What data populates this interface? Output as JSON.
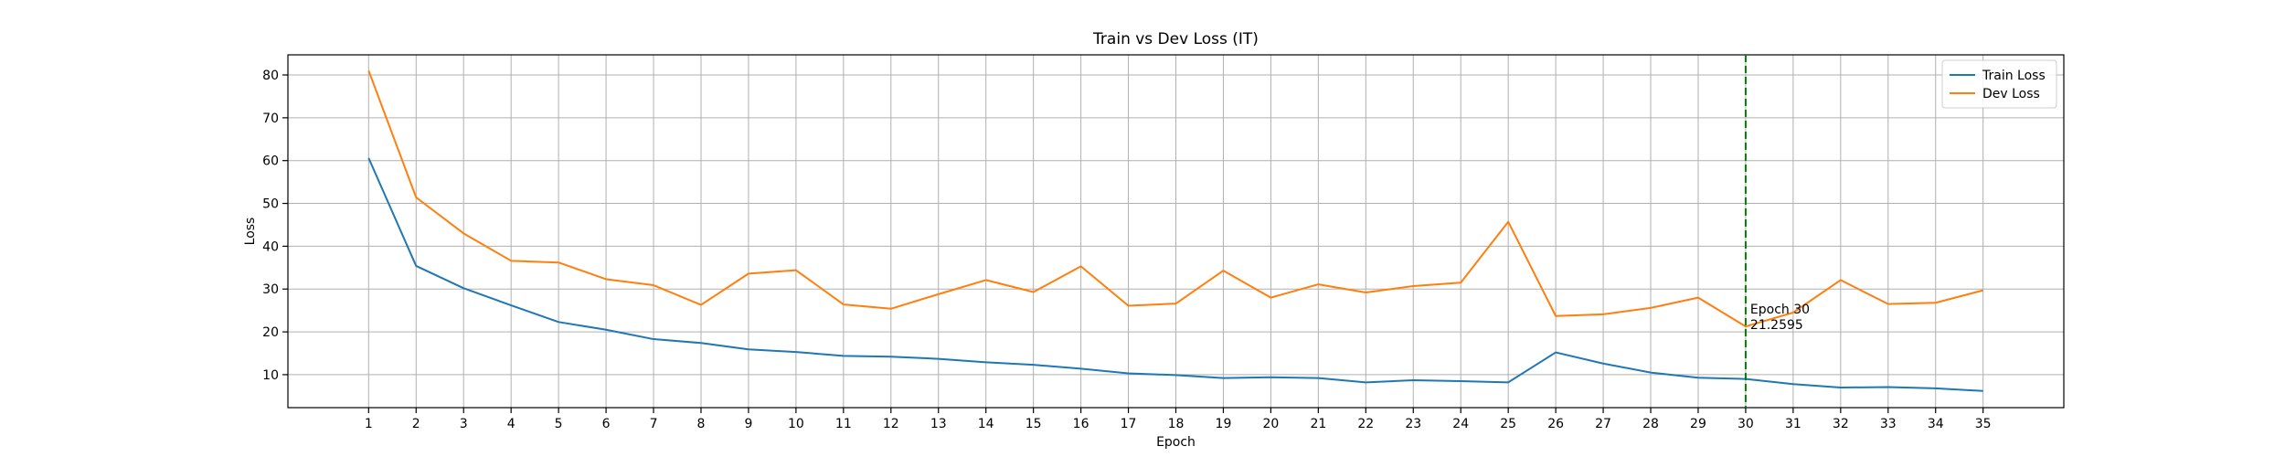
{
  "chart_data": {
    "type": "line",
    "title": "Train vs Dev Loss (IT)",
    "xlabel": "Epoch",
    "ylabel": "Loss",
    "x": [
      1,
      2,
      3,
      4,
      5,
      6,
      7,
      8,
      9,
      10,
      11,
      12,
      13,
      14,
      15,
      16,
      17,
      18,
      19,
      20,
      21,
      22,
      23,
      24,
      25,
      26,
      27,
      28,
      29,
      30,
      31,
      32,
      33,
      34,
      35
    ],
    "xlim": [
      -0.7,
      36.7
    ],
    "ylim": [
      2.3,
      84.7
    ],
    "yticks": [
      10,
      20,
      30,
      40,
      50,
      60,
      70,
      80
    ],
    "grid": true,
    "legend_position": "top-right",
    "series": [
      {
        "name": "Train Loss",
        "color": "#1f77b4",
        "values": [
          60.6,
          35.4,
          30.2,
          26.2,
          22.3,
          20.5,
          18.3,
          17.4,
          15.9,
          15.3,
          14.4,
          14.2,
          13.7,
          12.9,
          12.3,
          11.4,
          10.3,
          9.9,
          9.2,
          9.4,
          9.2,
          8.2,
          8.7,
          8.5,
          8.2,
          15.2,
          12.6,
          10.5,
          9.3,
          9.0,
          7.8,
          7.0,
          7.1,
          6.8,
          6.2
        ]
      },
      {
        "name": "Dev Loss",
        "color": "#ff7f0e",
        "values": [
          81.0,
          51.4,
          43.0,
          36.6,
          36.2,
          32.3,
          30.9,
          26.3,
          33.6,
          34.4,
          26.4,
          25.4,
          28.8,
          32.1,
          29.3,
          35.3,
          26.1,
          26.6,
          34.3,
          28.0,
          31.1,
          29.2,
          30.7,
          31.5,
          45.7,
          23.7,
          24.1,
          25.6,
          28.0,
          21.26,
          24.5,
          32.1,
          26.5,
          26.8,
          29.7
        ]
      }
    ],
    "annotation": {
      "x": 30,
      "line_color": "#008000",
      "line1": "Epoch 30",
      "line2": "21.2595"
    }
  }
}
